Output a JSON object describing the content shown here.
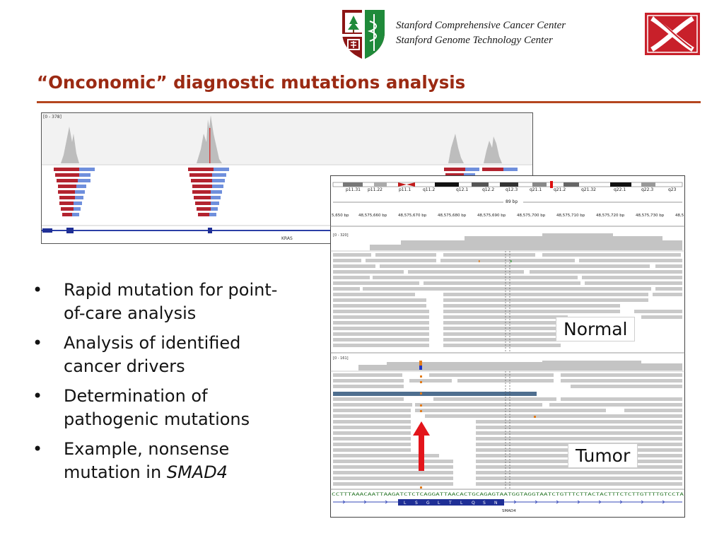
{
  "header": {
    "affiliation_line1": "Stanford Comprehensive Cancer Center",
    "affiliation_line2": "Stanford Genome Technology Center"
  },
  "slide": {
    "title": "“Onconomic” diagnostic mutations analysis"
  },
  "bullets": [
    {
      "line1": "Rapid mutation for point-",
      "line2": "of-care analysis"
    },
    {
      "line1": "Analysis of identified",
      "line2": "cancer drivers"
    },
    {
      "line1": "Determination of",
      "line2": "pathogenic mutations"
    },
    {
      "line1": "Example, nonsense",
      "line2_prefix": "mutation in ",
      "line2_italic": "SMAD4"
    }
  ],
  "igv_top": {
    "range_label": "[0 - 378]",
    "gene_label": "KRAS"
  },
  "igv_main": {
    "cytobands": [
      "p11.31",
      "p11.22",
      "p11.1",
      "q11.2",
      "q12.1",
      "q12.2",
      "q12.3",
      "q21.1",
      "q21.2",
      "q21.32",
      "q22.1",
      "q22.3",
      "q23"
    ],
    "span_label": "89 bp",
    "positions": [
      "5,650 bp",
      "48,575,660 bp",
      "48,575,670 bp",
      "48,575,680 bp",
      "48,575,690 bp",
      "48,575,700 bp",
      "48,575,710 bp",
      "48,575,720 bp",
      "48,575,730 bp",
      "48,5"
    ],
    "normal_range": "[0 - 320]",
    "tumor_range": "[0 - 161]",
    "normal_label": "Normal",
    "tumor_label": "Tumor",
    "sequence": "CCTTTAAACAATTAAGATCTCTCAGGATTAACACTGCAGAGTAATGGTAGGTAATCTGTTTCTTACTACTTTCTCTTGTTTTGTCCTA",
    "amino_acids": [
      "L",
      "S",
      "G",
      "L",
      "T",
      "L",
      "Q",
      "S",
      "N"
    ],
    "gene_label": "SMAD4"
  },
  "colors": {
    "title": "#9b2a13",
    "rule": "#b5461f",
    "mutation_arrow": "#e3151b"
  }
}
